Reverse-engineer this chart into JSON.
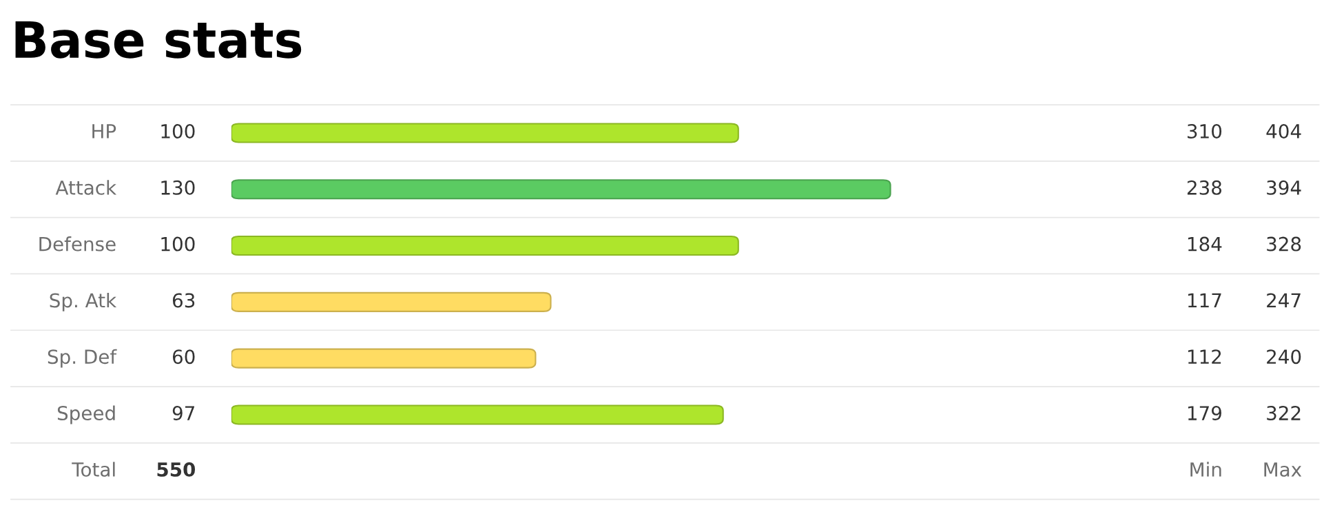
{
  "chart_data": [
    {
      "type": "bar",
      "orientation": "horizontal",
      "title": "Base stats",
      "categories": [
        "HP",
        "Attack",
        "Defense",
        "Sp. Atk",
        "Sp. Def",
        "Speed"
      ],
      "data_labels": true,
      "annotations": [
        "Total",
        "550"
      ],
      "series": [
        {
          "values": [
            100,
            130,
            100,
            63,
            60,
            97
          ],
          "colors": [
            "#aee52c",
            "#5bcb62",
            "#aee52c",
            "#ffdc62",
            "#ffdc62",
            "#aee52c"
          ]
        }
      ]
    },
    {
      "type": "other",
      "annotations": [
        "310",
        "404",
        "238",
        "394",
        "184",
        "328",
        "117",
        "247",
        "112",
        "240",
        "179",
        "322",
        "Min",
        "Max"
      ]
    }
  ]
}
